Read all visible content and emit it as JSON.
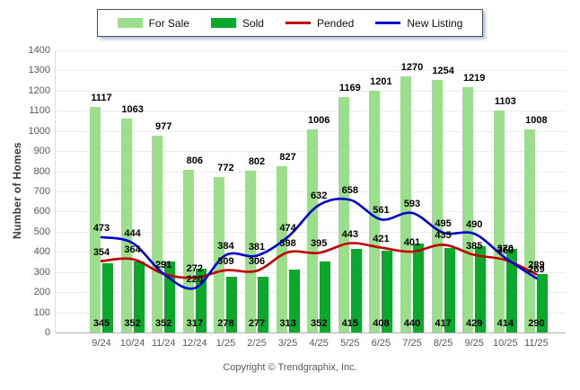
{
  "y_axis": {
    "title": "Number of Homes"
  },
  "footer": {
    "copyright": "Copyright © Trendgraphix, Inc."
  },
  "chart_data": {
    "type": "bar",
    "title": "",
    "xlabel": "",
    "ylabel": "Number of Homes",
    "ylim": [
      0,
      1400
    ],
    "ytick_step": 100,
    "grid": true,
    "legend_position": "top",
    "categories": [
      "9/24",
      "10/24",
      "11/24",
      "12/24",
      "1/25",
      "2/25",
      "3/25",
      "4/25",
      "5/25",
      "6/25",
      "7/25",
      "8/25",
      "9/25",
      "10/25",
      "11/25"
    ],
    "series": [
      {
        "name": "For Sale",
        "render": "bar",
        "label_position": "above",
        "color": "#9BDE8B",
        "values": [
          1117,
          1063,
          977,
          806,
          772,
          802,
          827,
          1006,
          1169,
          1201,
          1270,
          1254,
          1219,
          1103,
          1008
        ]
      },
      {
        "name": "Sold",
        "render": "bar",
        "label_position": "inside-bottom",
        "color": "#0AA92C",
        "values": [
          345,
          352,
          352,
          317,
          278,
          277,
          313,
          352,
          415,
          408,
          440,
          417,
          429,
          414,
          290
        ]
      },
      {
        "name": "Pended",
        "render": "line",
        "label_position": "above",
        "color": "#C00000",
        "values": [
          354,
          364,
          291,
          272,
          309,
          306,
          398,
          395,
          443,
          421,
          401,
          435,
          385,
          360,
          289
        ]
      },
      {
        "name": "New Listing",
        "render": "line",
        "label_position": "above",
        "color": "#0000CC",
        "values": [
          473,
          444,
          291,
          220,
          384,
          381,
          474,
          632,
          658,
          561,
          593,
          495,
          490,
          370,
          269
        ]
      }
    ]
  }
}
